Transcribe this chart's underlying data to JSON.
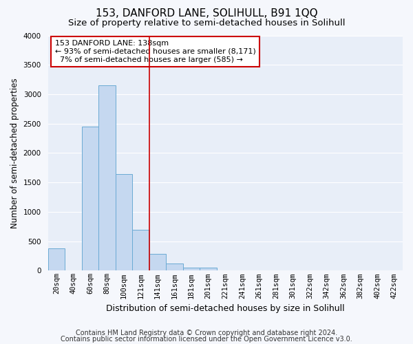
{
  "title": "153, DANFORD LANE, SOLIHULL, B91 1QQ",
  "subtitle": "Size of property relative to semi-detached houses in Solihull",
  "xlabel": "Distribution of semi-detached houses by size in Solihull",
  "ylabel": "Number of semi-detached properties",
  "footnote1": "Contains HM Land Registry data © Crown copyright and database right 2024.",
  "footnote2": "Contains public sector information licensed under the Open Government Licence v3.0.",
  "annotation_line1": "153 DANFORD LANE: 138sqm",
  "annotation_line2": "← 93% of semi-detached houses are smaller (8,171)",
  "annotation_line3": "  7% of semi-detached houses are larger (585) →",
  "bar_labels": [
    "20sqm",
    "40sqm",
    "60sqm",
    "80sqm",
    "100sqm",
    "121sqm",
    "141sqm",
    "161sqm",
    "181sqm",
    "201sqm",
    "221sqm",
    "241sqm",
    "261sqm",
    "281sqm",
    "301sqm",
    "322sqm",
    "342sqm",
    "362sqm",
    "382sqm",
    "402sqm",
    "422sqm"
  ],
  "bar_values": [
    375,
    0,
    2450,
    3150,
    1640,
    700,
    290,
    120,
    55,
    50,
    0,
    0,
    0,
    0,
    0,
    0,
    0,
    0,
    0,
    0,
    0
  ],
  "property_line_x": 6.0,
  "bar_color": "#c5d8f0",
  "bar_edge_color": "#6aaad4",
  "highlight_line_color": "#cc0000",
  "annotation_box_color": "#ffffff",
  "annotation_box_edge": "#cc0000",
  "ylim": [
    0,
    4000
  ],
  "background_color": "#e8eef8",
  "figure_background": "#f5f7fc",
  "grid_color": "#ffffff",
  "title_fontsize": 11,
  "subtitle_fontsize": 9.5,
  "ylabel_fontsize": 8.5,
  "xlabel_fontsize": 9,
  "tick_fontsize": 7.5,
  "footnote_fontsize": 7
}
